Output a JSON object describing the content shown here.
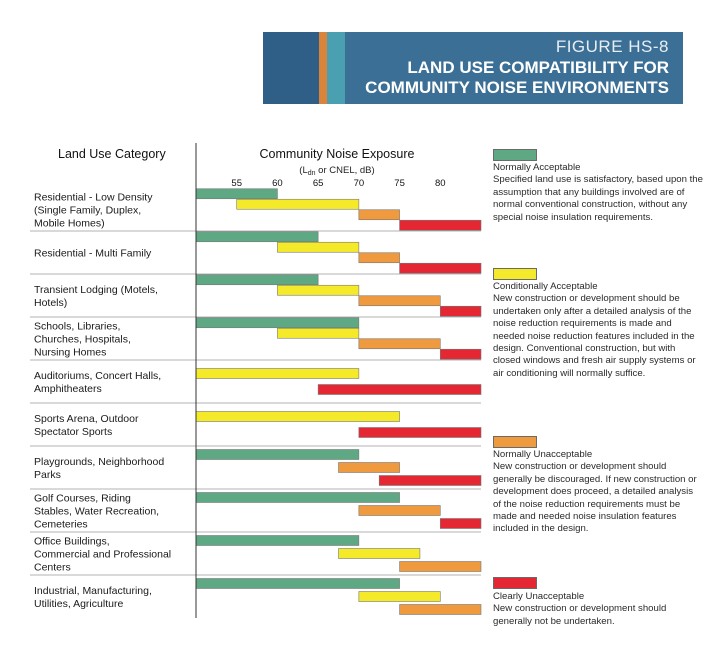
{
  "header": {
    "figure_number": "FIGURE HS-8",
    "title": "LAND USE COMPATIBILITY FOR COMMUNITY NOISE ENVIRONMENTS",
    "stripe_colors": [
      "#2f5f87",
      "#d9843a",
      "#4a9fb0"
    ],
    "background": "#3b6f96"
  },
  "chart_data": {
    "type": "table",
    "title": "Community Noise Exposure",
    "column_label": "Land Use Category",
    "axis_unit_prefix": "(L",
    "axis_unit_sub": "dn",
    "axis_unit_suffix": " or CNEL, dB)",
    "xlim": [
      50,
      85
    ],
    "ticks": [
      55,
      60,
      65,
      70,
      75,
      80
    ],
    "colors": {
      "normally_acceptable": "#5fa884",
      "conditionally_acceptable": "#f5ea2a",
      "normally_unacceptable": "#ef9a3e",
      "clearly_unacceptable": "#e52734"
    },
    "rows": [
      {
        "label": "Residential - Low Density (Single Family, Duplex, Mobile Homes)",
        "bars": [
          {
            "c": "normally_acceptable",
            "from": 50,
            "to": 60
          },
          {
            "c": "conditionally_acceptable",
            "from": 55,
            "to": 70
          },
          {
            "c": "normally_unacceptable",
            "from": 70,
            "to": 75
          },
          {
            "c": "clearly_unacceptable",
            "from": 75,
            "to": 85
          }
        ]
      },
      {
        "label": "Residential - Multi Family",
        "bars": [
          {
            "c": "normally_acceptable",
            "from": 50,
            "to": 65
          },
          {
            "c": "conditionally_acceptable",
            "from": 60,
            "to": 70
          },
          {
            "c": "normally_unacceptable",
            "from": 70,
            "to": 75
          },
          {
            "c": "clearly_unacceptable",
            "from": 75,
            "to": 85
          }
        ]
      },
      {
        "label": "Transient Lodging (Motels, Hotels)",
        "bars": [
          {
            "c": "normally_acceptable",
            "from": 50,
            "to": 65
          },
          {
            "c": "conditionally_acceptable",
            "from": 60,
            "to": 70
          },
          {
            "c": "normally_unacceptable",
            "from": 70,
            "to": 80
          },
          {
            "c": "clearly_unacceptable",
            "from": 80,
            "to": 85
          }
        ]
      },
      {
        "label": "Schools, Libraries, Churches, Hospitals, Nursing Homes",
        "bars": [
          {
            "c": "normally_acceptable",
            "from": 50,
            "to": 70
          },
          {
            "c": "conditionally_acceptable",
            "from": 60,
            "to": 70
          },
          {
            "c": "normally_unacceptable",
            "from": 70,
            "to": 80
          },
          {
            "c": "clearly_unacceptable",
            "from": 80,
            "to": 85
          }
        ]
      },
      {
        "label": "Auditoriums, Concert Halls, Amphitheaters",
        "bars": [
          {
            "c": "conditionally_acceptable",
            "from": 50,
            "to": 70
          },
          {
            "c": "clearly_unacceptable",
            "from": 65,
            "to": 85
          }
        ]
      },
      {
        "label": "Sports Arena, Outdoor Spectator Sports",
        "bars": [
          {
            "c": "conditionally_acceptable",
            "from": 50,
            "to": 75
          },
          {
            "c": "clearly_unacceptable",
            "from": 70,
            "to": 85
          }
        ]
      },
      {
        "label": "Playgrounds, Neighborhood Parks",
        "bars": [
          {
            "c": "normally_acceptable",
            "from": 50,
            "to": 70
          },
          {
            "c": "normally_unacceptable",
            "from": 67.5,
            "to": 75
          },
          {
            "c": "clearly_unacceptable",
            "from": 72.5,
            "to": 85
          }
        ]
      },
      {
        "label": "Golf Courses, Riding Stables, Water Recreation, Cemeteries",
        "bars": [
          {
            "c": "normally_acceptable",
            "from": 50,
            "to": 75
          },
          {
            "c": "normally_unacceptable",
            "from": 70,
            "to": 80
          },
          {
            "c": "clearly_unacceptable",
            "from": 80,
            "to": 85
          }
        ]
      },
      {
        "label": "Office Buildings, Commercial and Professional Centers",
        "bars": [
          {
            "c": "normally_acceptable",
            "from": 50,
            "to": 70
          },
          {
            "c": "conditionally_acceptable",
            "from": 67.5,
            "to": 77.5
          },
          {
            "c": "normally_unacceptable",
            "from": 75,
            "to": 85
          }
        ]
      },
      {
        "label": "Industrial, Manufacturing, Utilities, Agriculture",
        "bars": [
          {
            "c": "normally_acceptable",
            "from": 50,
            "to": 75
          },
          {
            "c": "conditionally_acceptable",
            "from": 70,
            "to": 80
          },
          {
            "c": "normally_unacceptable",
            "from": 75,
            "to": 85
          }
        ]
      }
    ],
    "legend": [
      {
        "key": "normally_acceptable",
        "title": "Normally Acceptable",
        "text": "Specified land use is satisfactory, based upon the assumption that any buildings involved are of normal conventional construction, without any special noise insulation requirements."
      },
      {
        "key": "conditionally_acceptable",
        "title": "Conditionally Acceptable",
        "text": "New construction or development should be undertaken only after a detailed analysis of the noise reduction requirements is made and needed noise reduction features included in the design. Conventional construction, but with closed windows and fresh air supply systems or air conditioning will normally suffice."
      },
      {
        "key": "normally_unacceptable",
        "title": "Normally Unacceptable",
        "text": "New construction or development should generally be discouraged. If new construction or development does proceed, a detailed analysis of the noise reduction requirements must be made and needed noise insulation features included in the design."
      },
      {
        "key": "clearly_unacceptable",
        "title": "Clearly Unacceptable",
        "text": "New construction or development should generally not be undertaken."
      }
    ]
  }
}
